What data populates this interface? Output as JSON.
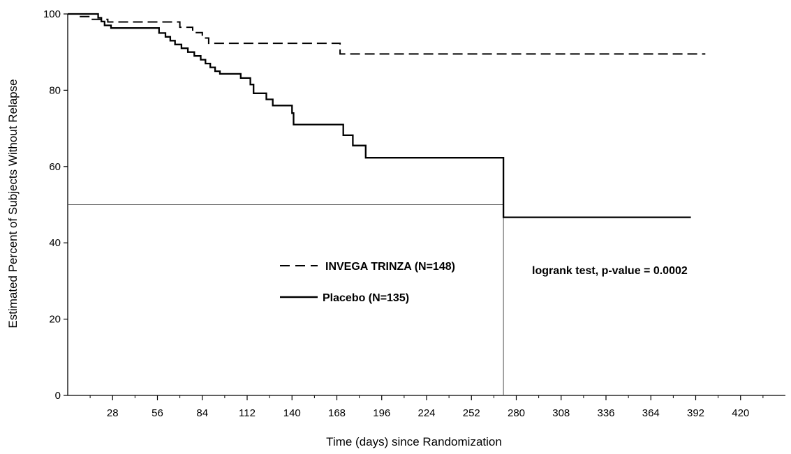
{
  "chart_data": {
    "type": "line",
    "title": "",
    "xlabel": "Time (days) since Randomization",
    "ylabel": "Estimated Percent of Subjects Without Relapse",
    "xlim": [
      0,
      448
    ],
    "ylim": [
      0,
      100
    ],
    "x_ticks": [
      28,
      56,
      84,
      112,
      140,
      168,
      196,
      224,
      252,
      280,
      308,
      336,
      364,
      392,
      420
    ],
    "x_tick_labels": [
      "28",
      "56",
      "84",
      "112",
      "140",
      "168",
      "196",
      "224",
      "252",
      "280",
      "308",
      "336",
      "364",
      "392",
      "420"
    ],
    "y_ticks": [
      0,
      20,
      40,
      60,
      80,
      100
    ],
    "y_tick_labels": [
      "0",
      "20",
      "40",
      "60",
      "80",
      "100"
    ],
    "grid": false,
    "legend_position": "center-left",
    "series": [
      {
        "name": "INVEGA TRINZA (N=148)",
        "style": "dashed",
        "color": "#000000",
        "steps": [
          [
            0,
            100
          ],
          [
            6,
            99.3
          ],
          [
            14,
            98.6
          ],
          [
            25,
            97.9
          ],
          [
            70,
            96.5
          ],
          [
            78,
            95.1
          ],
          [
            84,
            93.7
          ],
          [
            88,
            92.3
          ],
          [
            170,
            89.5
          ],
          [
            398,
            89.5
          ]
        ]
      },
      {
        "name": "Placebo (N=135)",
        "style": "solid",
        "color": "#000000",
        "steps": [
          [
            0,
            100
          ],
          [
            17,
            100
          ],
          [
            19,
            99
          ],
          [
            21,
            98
          ],
          [
            23,
            97
          ],
          [
            27,
            96.3
          ],
          [
            52,
            96.3
          ],
          [
            57,
            95
          ],
          [
            61,
            94
          ],
          [
            64,
            93
          ],
          [
            67,
            92
          ],
          [
            71,
            91
          ],
          [
            75,
            90
          ],
          [
            79,
            89
          ],
          [
            83,
            88
          ],
          [
            86,
            87
          ],
          [
            89,
            86
          ],
          [
            92,
            85
          ],
          [
            95,
            84.3
          ],
          [
            106,
            84.3
          ],
          [
            108,
            83.2
          ],
          [
            114,
            81.5
          ],
          [
            116,
            79.2
          ],
          [
            124,
            77.6
          ],
          [
            128,
            76
          ],
          [
            139,
            76
          ],
          [
            140,
            74
          ],
          [
            141,
            71
          ],
          [
            170,
            71
          ],
          [
            172,
            68.2
          ],
          [
            178,
            65.5
          ],
          [
            186,
            62.3
          ],
          [
            271,
            62.3
          ],
          [
            272,
            46.7
          ],
          [
            389,
            46.7
          ]
        ]
      }
    ],
    "reference_lines": [
      {
        "type": "horizontal",
        "y": 50,
        "x_range": [
          0,
          272
        ]
      },
      {
        "type": "vertical",
        "x": 272,
        "y_range": [
          0,
          50
        ]
      }
    ],
    "annotation": "logrank test, p-value = 0.0002"
  }
}
